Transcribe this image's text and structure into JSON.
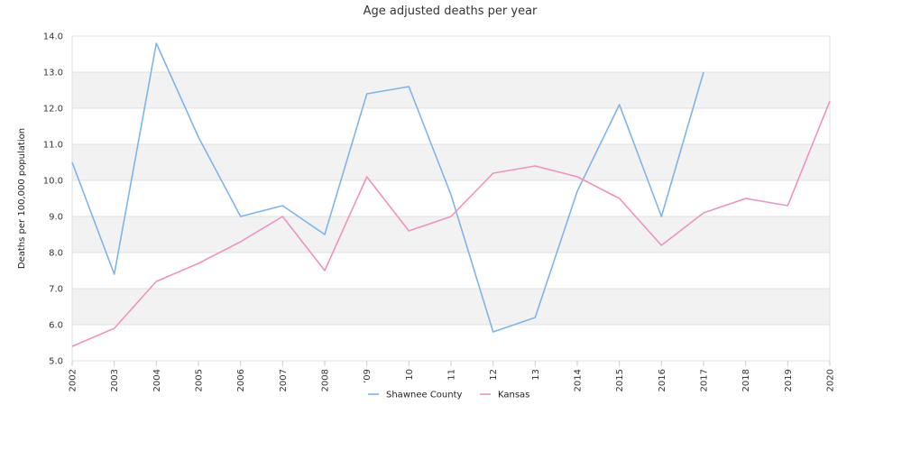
{
  "chart_data": {
    "type": "line",
    "title": "Age adjusted deaths per year",
    "xlabel": "",
    "ylabel": "Deaths per 100,000 population",
    "x": [
      "2002",
      "2003",
      "2004",
      "2005",
      "2006",
      "2007",
      "2008",
      "2009",
      "2010",
      "2011",
      "2012",
      "2013",
      "2014",
      "2015",
      "2016",
      "2017",
      "2018",
      "2019",
      "2020"
    ],
    "x_tick_labels": [
      "2002",
      "2003",
      "2004",
      "2005",
      "2006",
      "2007",
      "2008",
      "’09",
      "10",
      "11",
      "12",
      "13",
      "2014",
      "2015",
      "2016",
      "2017",
      "2018",
      "2019",
      "2020"
    ],
    "ylim": [
      5.0,
      14.0
    ],
    "y_ticks": [
      "5.0",
      "6.0",
      "7.0",
      "8.0",
      "9.0",
      "10.0",
      "11.0",
      "12.0",
      "13.0",
      "14.0"
    ],
    "grid": "horizontal alternating bands",
    "legend_position": "bottom-center",
    "series": [
      {
        "name": "Shawnee County",
        "color": "#7cb5ec",
        "values": [
          10.5,
          7.4,
          13.8,
          11.2,
          9.0,
          9.3,
          8.5,
          12.4,
          12.6,
          9.6,
          5.8,
          6.2,
          9.7,
          12.1,
          9.0,
          13.0,
          null,
          null,
          null
        ]
      },
      {
        "name": "Kansas",
        "color": "#f191c1",
        "values": [
          5.4,
          5.9,
          7.2,
          7.7,
          8.3,
          9.0,
          7.5,
          10.1,
          8.6,
          9.0,
          10.2,
          10.4,
          10.1,
          9.5,
          8.2,
          9.1,
          9.5,
          9.3,
          12.2
        ]
      }
    ]
  }
}
